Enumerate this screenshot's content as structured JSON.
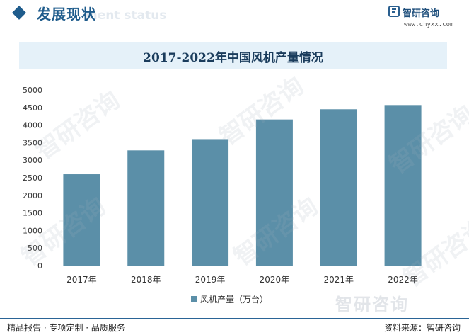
{
  "header": {
    "title": "发展现状",
    "ghost_text": "ment status"
  },
  "brand": {
    "name": "智研咨询",
    "url": "www.chyxx.com",
    "footer_mark": "智研咨询"
  },
  "watermark_text": "智研咨询",
  "chart_data": {
    "type": "bar",
    "title": "2017-2022年中国风机产量情况",
    "categories": [
      "2017年",
      "2018年",
      "2019年",
      "2020年",
      "2021年",
      "2022年"
    ],
    "series": [
      {
        "name": "风机产量（万台）",
        "values": [
          2600,
          3280,
          3600,
          4160,
          4450,
          4570
        ]
      }
    ],
    "yticks": [
      "0",
      "500",
      "1000",
      "1500",
      "2000",
      "2500",
      "3000",
      "3500",
      "4000",
      "4500",
      "5000"
    ],
    "ylim": [
      0,
      5000
    ],
    "bar_color": "#5b8fa8",
    "legend_position": "bottom",
    "grid": false
  },
  "footer": {
    "left": "精品报告 · 专项定制 · 品质服务",
    "right": "资料来源：智研咨询"
  }
}
